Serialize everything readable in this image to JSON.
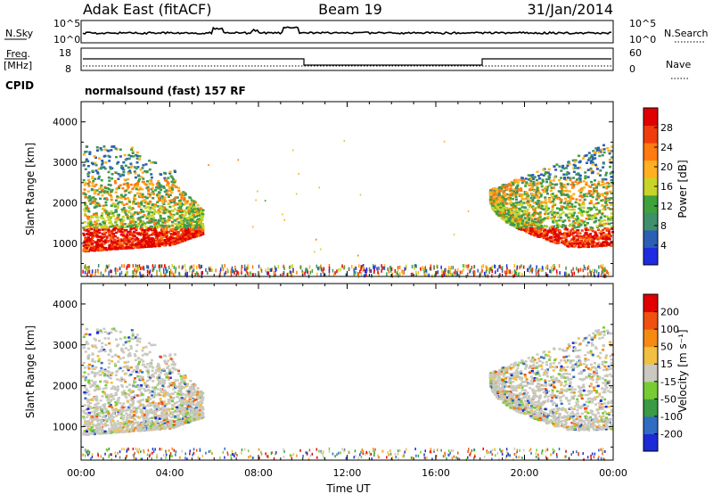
{
  "header": {
    "station": "Adak East (fitACF)",
    "beam": "Beam 19",
    "date": "31/Jan/2014"
  },
  "noise_panel": {
    "left_label": "N.Sky",
    "right_label": "N.Search",
    "left_ticks": [
      "10^5",
      "10^0"
    ],
    "right_ticks": [
      "10^5",
      "10^0"
    ]
  },
  "freq_panel": {
    "left_label_1": "Freq.",
    "left_label_2": "[MHz]",
    "left_ticks": [
      "18",
      "8"
    ],
    "right_ticks": [
      "60",
      "0"
    ],
    "right_label": "Nave"
  },
  "cpid": {
    "label": "CPID",
    "value": "normalsound (fast) 157 RF"
  },
  "colors": {
    "frame": "#000000",
    "power_scale": [
      "#1f2be0",
      "#2a5fb5",
      "#3f8f6a",
      "#3fa23a",
      "#c8d428",
      "#ffb020",
      "#ff7a10",
      "#f03c0c",
      "#e00000"
    ],
    "velocity_scale": [
      "#1b2bd6",
      "#2f6cc2",
      "#3a9a45",
      "#77cc33",
      "#c9c9c0",
      "#f2c040",
      "#f48a12",
      "#f05010",
      "#e00000"
    ]
  },
  "chart_data": [
    {
      "type": "heatmap",
      "name": "power-panel",
      "xlabel": "",
      "ylabel": "Slant Range [km]",
      "xlim": [
        0,
        24
      ],
      "ylim": [
        180,
        4500
      ],
      "y_ticks": [
        "1000",
        "2000",
        "3000",
        "4000"
      ],
      "colorbar": {
        "label": "Power [dB]",
        "tick_labels": [
          "4",
          "8",
          "12",
          "16",
          "20",
          "24",
          "28"
        ],
        "range": [
          0,
          32
        ]
      }
    },
    {
      "type": "heatmap",
      "name": "velocity-panel",
      "xlabel": "Time UT",
      "ylabel": "Slant Range [km]",
      "xlim": [
        0,
        24
      ],
      "ylim": [
        180,
        4500
      ],
      "x_ticks": [
        "00:00",
        "04:00",
        "08:00",
        "12:00",
        "16:00",
        "20:00",
        "00:00"
      ],
      "y_ticks": [
        "1000",
        "2000",
        "3000",
        "4000"
      ],
      "colorbar": {
        "label": "Velocity [m s⁻¹]",
        "tick_labels": [
          "200",
          "100",
          "50",
          "15",
          "-15",
          "-50",
          "-100",
          "-200"
        ]
      }
    }
  ]
}
